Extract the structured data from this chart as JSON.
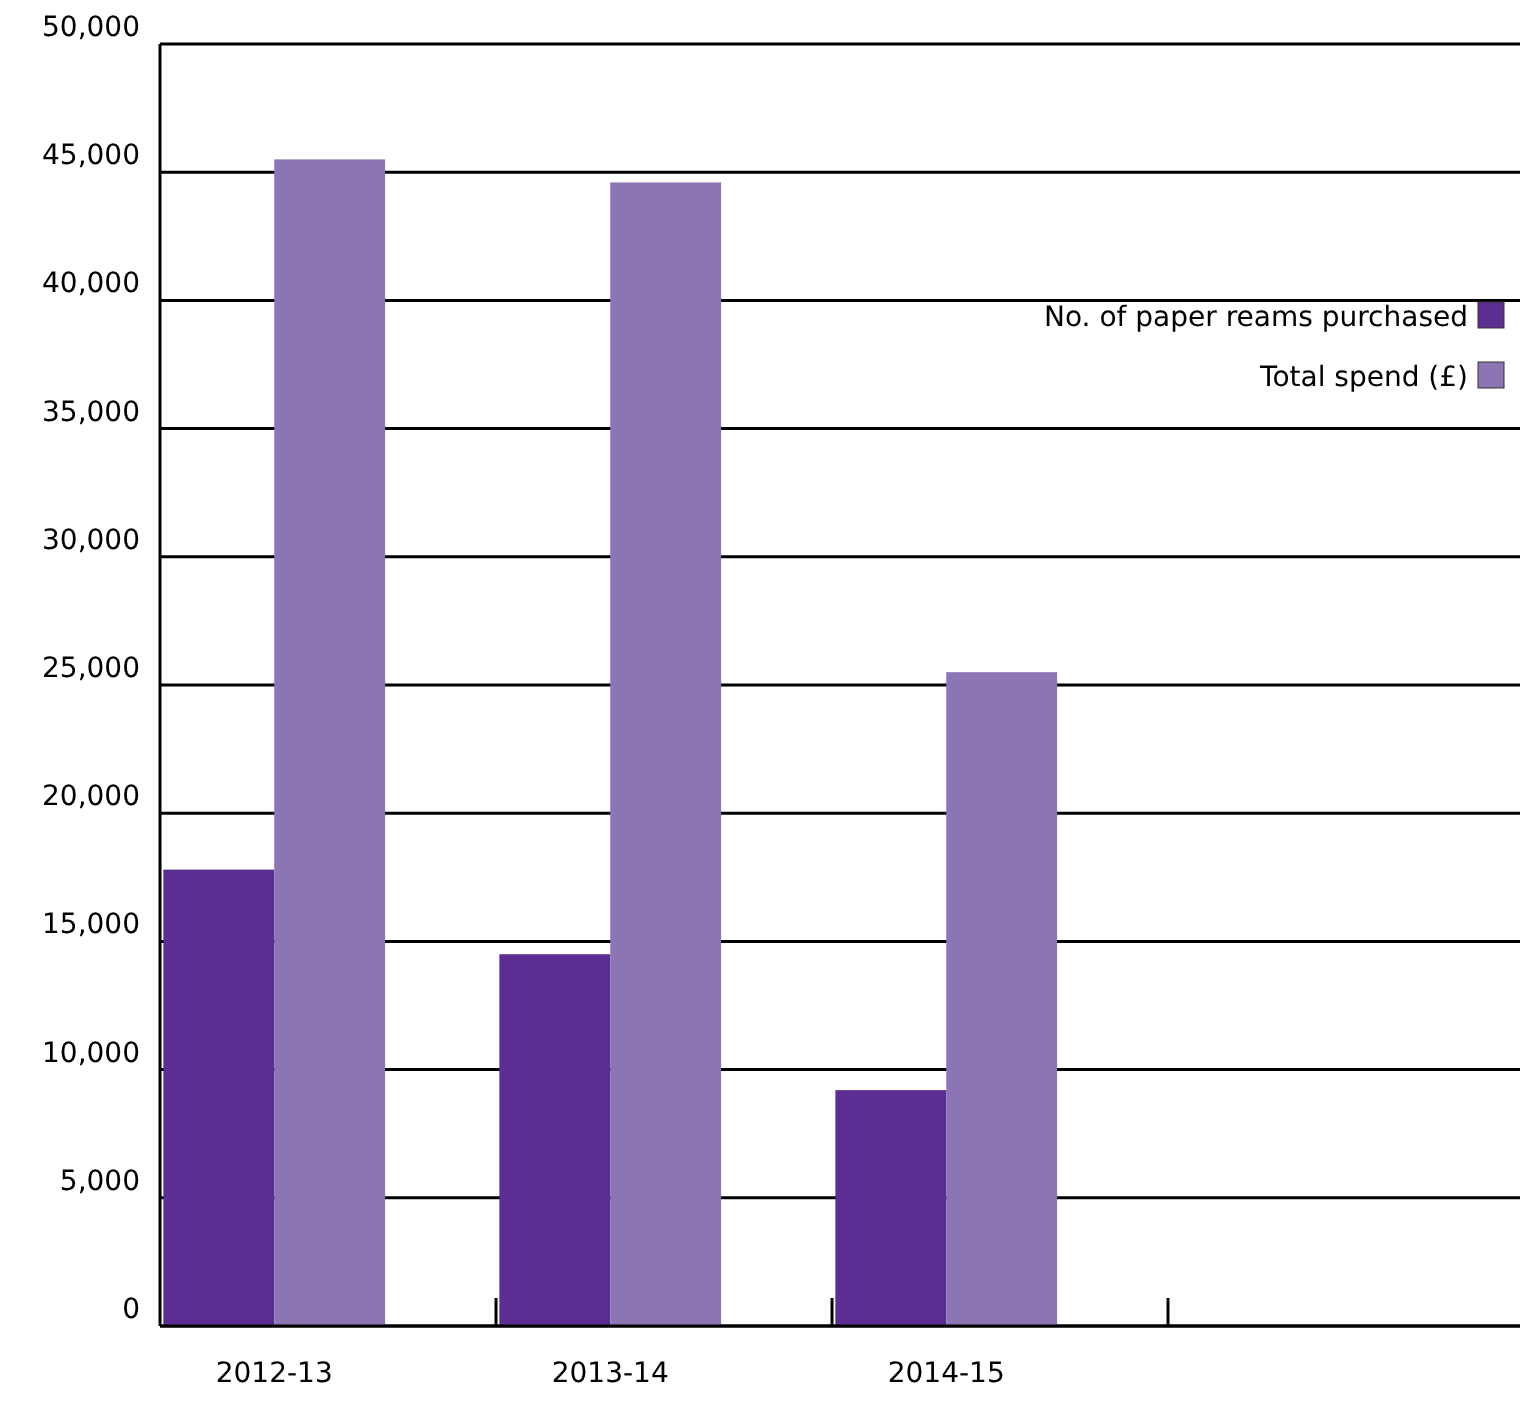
{
  "chart_data": {
    "type": "bar",
    "categories": [
      "2012-13",
      "2013-14",
      "2014-15",
      null
    ],
    "series": [
      {
        "name": "No. of paper reams purchased",
        "color": "#5b2e91",
        "values": [
          17800,
          14500,
          9200,
          null
        ]
      },
      {
        "name": "Total spend (£)",
        "color": "#8c75b5",
        "values": [
          45500,
          44600,
          25500,
          null
        ]
      }
    ],
    "ylim": [
      0,
      50000
    ],
    "yticks": [
      {
        "value": 0,
        "label": "0"
      },
      {
        "value": 5000,
        "label": "5,000"
      },
      {
        "value": 10000,
        "label": "10,000"
      },
      {
        "value": 15000,
        "label": "15,000"
      },
      {
        "value": 20000,
        "label": "20,000"
      },
      {
        "value": 25000,
        "label": "25,000"
      },
      {
        "value": 30000,
        "label": "30,000"
      },
      {
        "value": 35000,
        "label": "35,000"
      },
      {
        "value": 40000,
        "label": "40,000"
      },
      {
        "value": 45000,
        "label": "45,000"
      },
      {
        "value": 50000,
        "label": "50,000"
      }
    ],
    "grid": "y",
    "legend": "top right"
  }
}
